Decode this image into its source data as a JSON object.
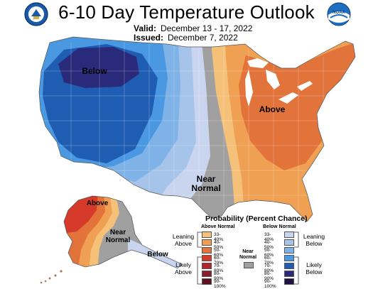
{
  "header": {
    "title": "6-10 Day Temperature Outlook",
    "valid_label": "Valid:",
    "valid_value": "December 13 - 17, 2022",
    "issued_label": "Issued:",
    "issued_value": "December 7, 2022"
  },
  "logos": {
    "left": "us-department-of-commerce-seal",
    "right": "noaa-logo",
    "right_text": "NOAA"
  },
  "map": {
    "labels": {
      "west_below": "Below",
      "east_above": "Above",
      "central_near_normal_line1": "Near",
      "central_near_normal_line2": "Normal",
      "alaska_above": "Above",
      "alaska_near_normal_line1": "Near",
      "alaska_near_normal_line2": "Normal",
      "alaska_below": "Below"
    }
  },
  "legend": {
    "title": "Probability (Percent Chance)",
    "above_header": "Above Normal",
    "below_header": "Below Normal",
    "near_header_line1": "Near",
    "near_header_line2": "Normal",
    "leaning_above_line1": "Leaning",
    "leaning_above_line2": "Above",
    "likely_above_line1": "Likely",
    "likely_above_line2": "Above",
    "leaning_below_line1": "Leaning",
    "leaning_below_line2": "Below",
    "likely_below_line1": "Likely",
    "likely_below_line2": "Below",
    "ranges": [
      "33-40%",
      "40-50%",
      "50-60%",
      "60-70%",
      "70-80%",
      "80-90%",
      "90-100%"
    ],
    "above_colors": [
      "#f5c078",
      "#efa052",
      "#e2733a",
      "#d63a2a",
      "#b7232a",
      "#8d1d2a",
      "#5e1220"
    ],
    "below_colors": [
      "#c9d4ef",
      "#a6c3e9",
      "#7fb2e6",
      "#4a98e2",
      "#1f5db3",
      "#2a2a7a",
      "#1f1346"
    ],
    "near_color": "#a0a0a0"
  }
}
